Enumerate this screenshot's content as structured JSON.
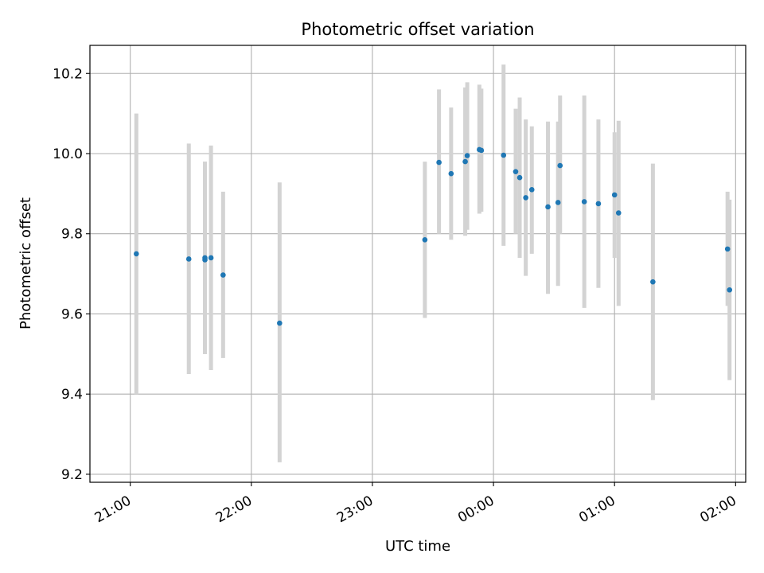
{
  "chart_data": {
    "type": "scatter",
    "title": "Photometric offset variation",
    "xlabel": "UTC time",
    "ylabel": "Photometric offset",
    "grid": true,
    "x_ticks": [
      "21:00",
      "22:00",
      "23:00",
      "00:00",
      "01:00",
      "02:00"
    ],
    "y_ticks": [
      "9.2",
      "9.4",
      "9.6",
      "9.8",
      "10.0",
      "10.2"
    ],
    "x_range_minutes": [
      -20,
      305
    ],
    "ylim": [
      9.18,
      10.27
    ],
    "colors": {
      "points": "#1f77b4",
      "errorbars": "#d3d3d3",
      "grid": "#b0b0b0"
    },
    "points": [
      {
        "t": "21:03",
        "y": 9.75,
        "err_low": 9.4,
        "err_high": 10.1
      },
      {
        "t": "21:29",
        "y": 9.737,
        "err_low": 9.45,
        "err_high": 10.025
      },
      {
        "t": "21:37",
        "y": 9.74,
        "err_low": 9.5,
        "err_high": 9.98
      },
      {
        "t": "21:37",
        "y": 9.735,
        "err_low": 9.5,
        "err_high": 9.98
      },
      {
        "t": "21:40",
        "y": 9.74,
        "err_low": 9.46,
        "err_high": 10.02
      },
      {
        "t": "21:46",
        "y": 9.697,
        "err_low": 9.49,
        "err_high": 9.905
      },
      {
        "t": "22:14",
        "y": 9.577,
        "err_low": 9.23,
        "err_high": 9.928
      },
      {
        "t": "23:26",
        "y": 9.785,
        "err_low": 9.59,
        "err_high": 9.98
      },
      {
        "t": "23:33",
        "y": 9.978,
        "err_low": 9.8,
        "err_high": 10.16
      },
      {
        "t": "23:39",
        "y": 9.95,
        "err_low": 9.785,
        "err_high": 10.115
      },
      {
        "t": "23:46",
        "y": 9.98,
        "err_low": 9.795,
        "err_high": 10.165
      },
      {
        "t": "23:47",
        "y": 9.995,
        "err_low": 9.81,
        "err_high": 10.178
      },
      {
        "t": "23:53",
        "y": 10.01,
        "err_low": 9.85,
        "err_high": 10.172
      },
      {
        "t": "23:54",
        "y": 10.008,
        "err_low": 9.855,
        "err_high": 10.162
      },
      {
        "t": "00:05",
        "y": 9.996,
        "err_low": 9.77,
        "err_high": 10.222
      },
      {
        "t": "00:11",
        "y": 9.955,
        "err_low": 9.8,
        "err_high": 10.112
      },
      {
        "t": "00:13",
        "y": 9.94,
        "err_low": 9.74,
        "err_high": 10.14
      },
      {
        "t": "00:16",
        "y": 9.89,
        "err_low": 9.695,
        "err_high": 10.085
      },
      {
        "t": "00:19",
        "y": 9.91,
        "err_low": 9.75,
        "err_high": 10.068
      },
      {
        "t": "00:27",
        "y": 9.867,
        "err_low": 9.65,
        "err_high": 10.08
      },
      {
        "t": "00:32",
        "y": 9.878,
        "err_low": 9.67,
        "err_high": 10.08
      },
      {
        "t": "00:33",
        "y": 9.97,
        "err_low": 9.8,
        "err_high": 10.145
      },
      {
        "t": "00:45",
        "y": 9.88,
        "err_low": 9.615,
        "err_high": 10.145
      },
      {
        "t": "00:52",
        "y": 9.875,
        "err_low": 9.665,
        "err_high": 10.085
      },
      {
        "t": "01:00",
        "y": 9.897,
        "err_low": 9.74,
        "err_high": 10.053
      },
      {
        "t": "01:02",
        "y": 9.852,
        "err_low": 9.62,
        "err_high": 10.082
      },
      {
        "t": "01:19",
        "y": 9.68,
        "err_low": 9.385,
        "err_high": 9.975
      },
      {
        "t": "01:56",
        "y": 9.762,
        "err_low": 9.62,
        "err_high": 9.905
      },
      {
        "t": "01:57",
        "y": 9.66,
        "err_low": 9.435,
        "err_high": 9.885
      }
    ]
  }
}
